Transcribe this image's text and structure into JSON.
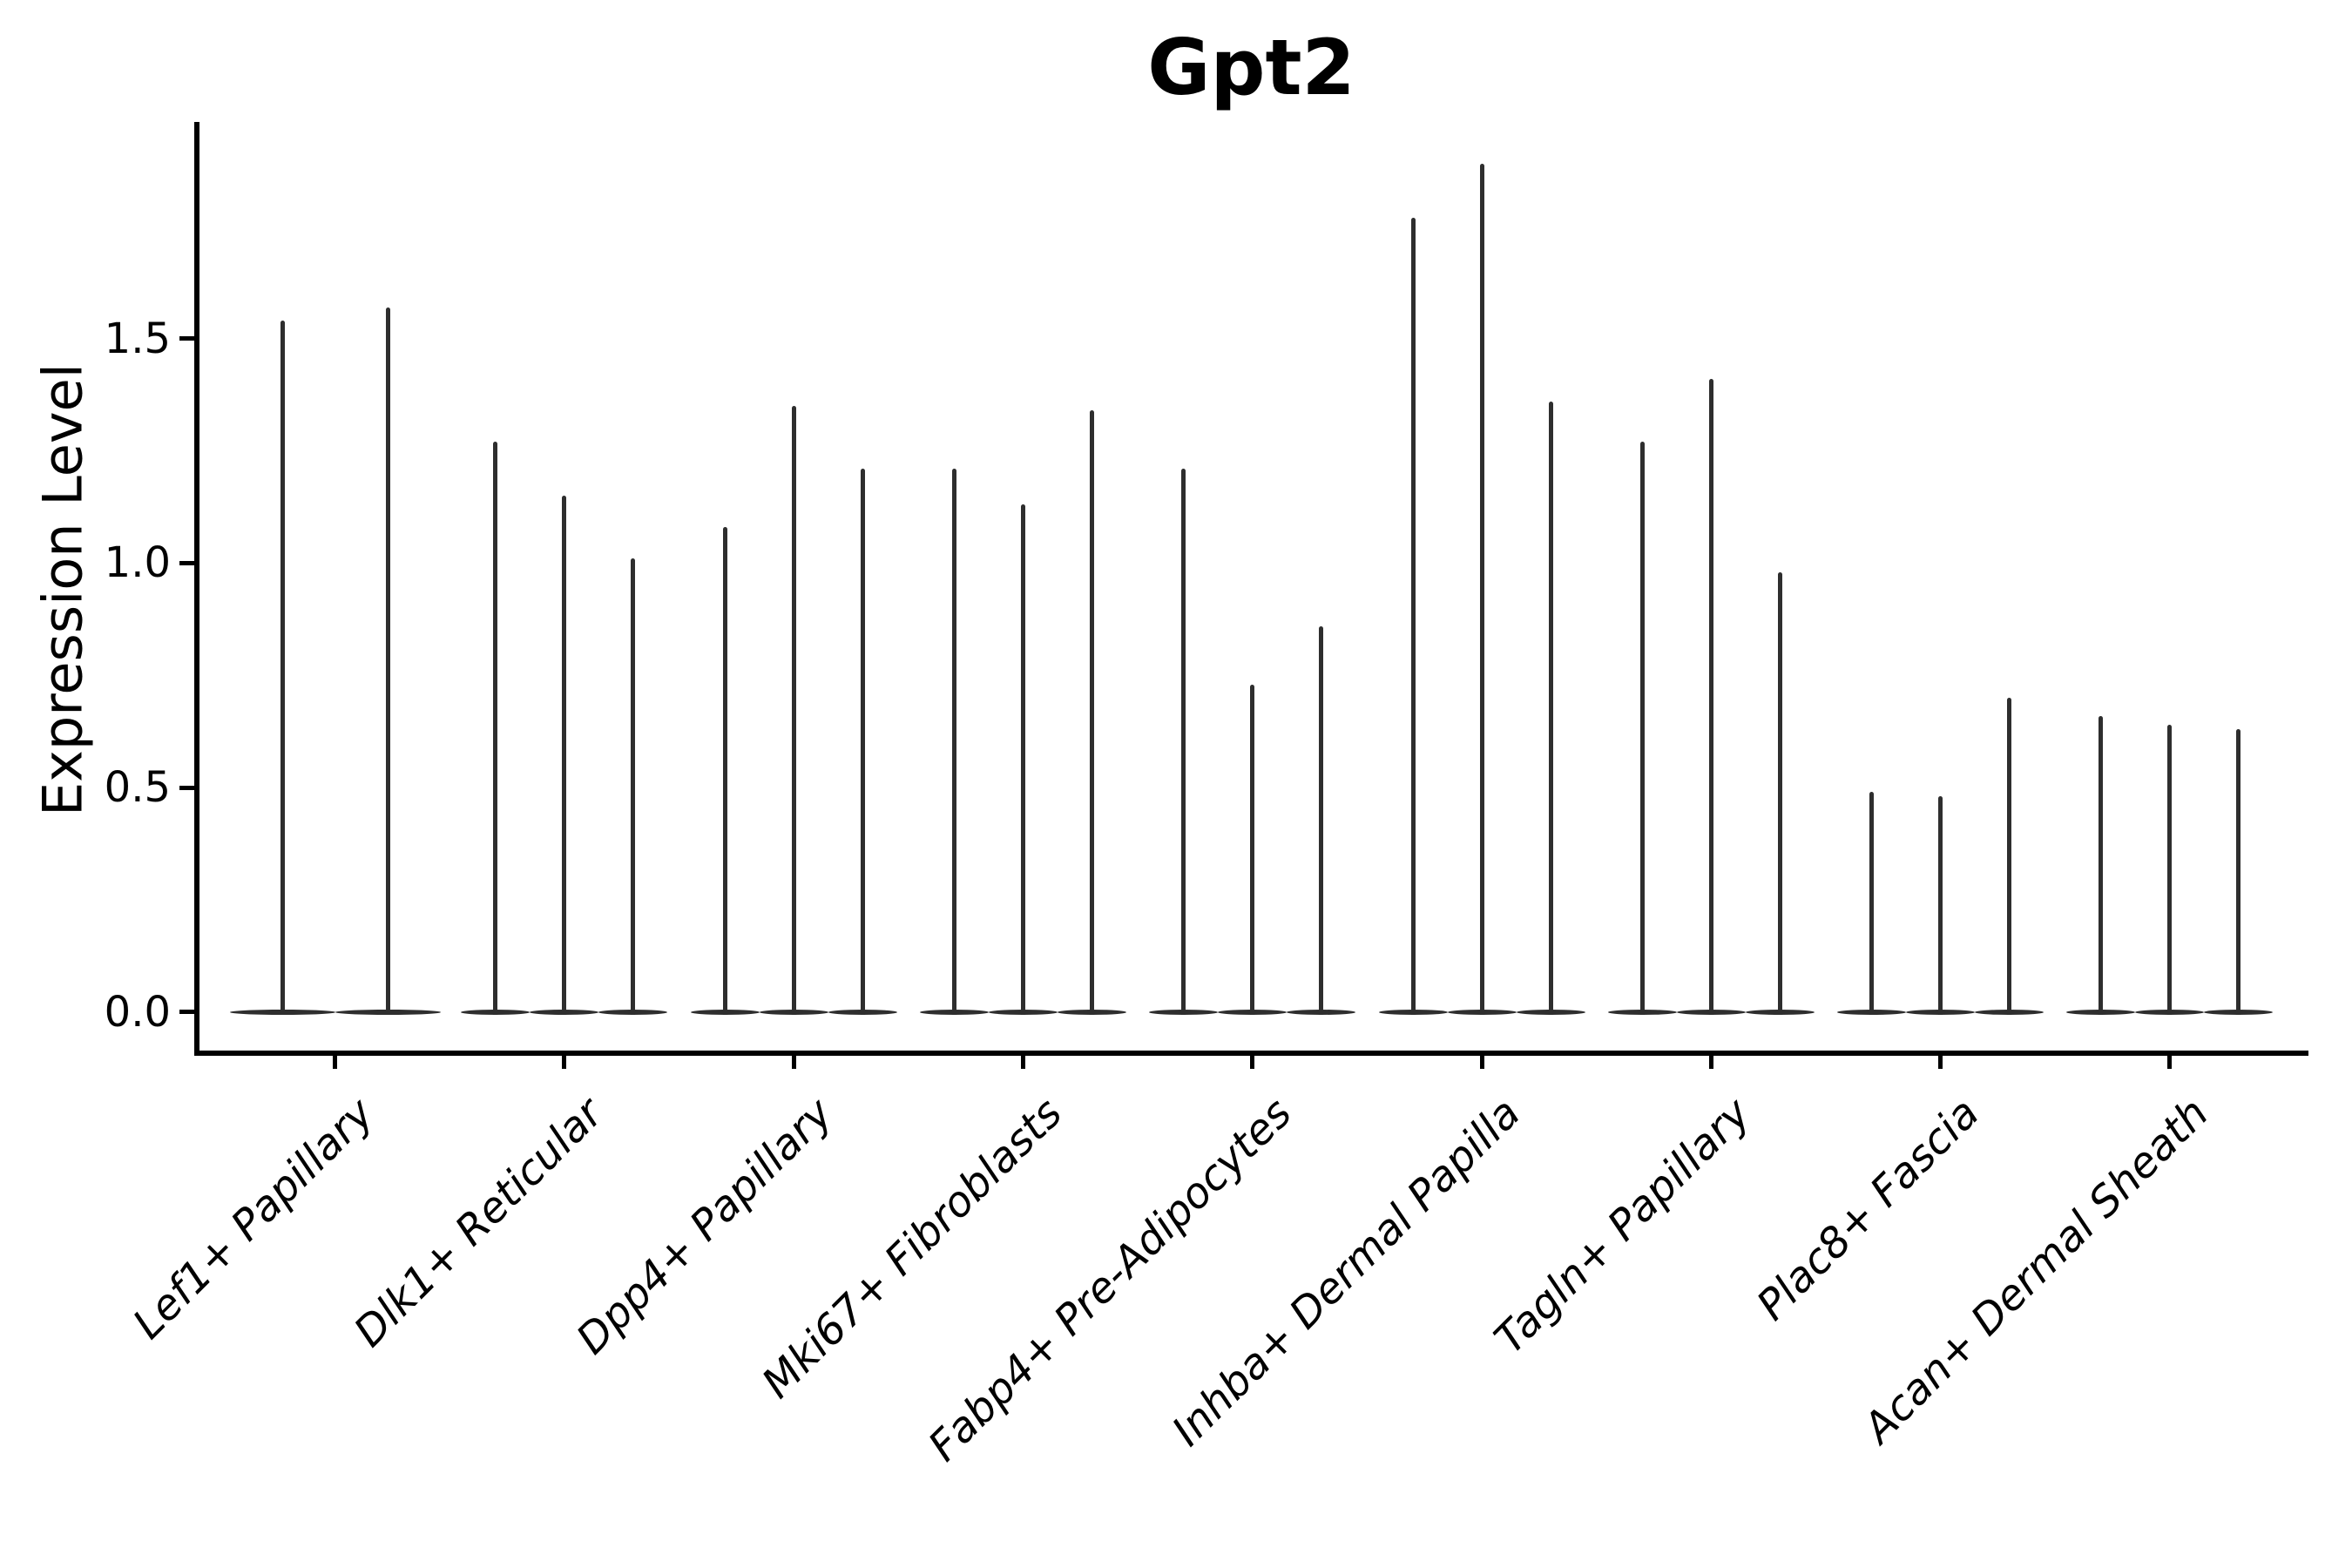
{
  "title": "Gpt2",
  "ylabel": "Expression Level",
  "chart_data": {
    "type": "violin",
    "title": "Gpt2",
    "xlabel": "",
    "ylabel": "Expression Level",
    "ylim": [
      0,
      1.98
    ],
    "yticks": [
      "0.0",
      "0.5",
      "1.0",
      "1.5"
    ],
    "grid": false,
    "legend": "none",
    "description": "Needle-thin stacked violin plot of Gpt2 expression; each category holds one narrow violin per sample whose bulk sits at 0 with a thin tail rising to the listed maximum expression value.",
    "categories": [
      "Lef1+ Papillary",
      "Dlk1+ Reticular",
      "Dpp4+ Papillary",
      "Mki67+ Fibroblasts",
      "Fabp4+ Pre-Adipocytes",
      "Inhba+ Dermal Papilla",
      "Tagln+ Papillary",
      "Plac8+ Fascia",
      "Acan+ Dermal Sheath"
    ],
    "groups": [
      {
        "label": "Lef1+ Papillary",
        "violin_max_values": [
          1.54,
          1.57
        ]
      },
      {
        "label": "Dlk1+ Reticular",
        "violin_max_values": [
          1.27,
          1.15,
          1.01
        ]
      },
      {
        "label": "Dpp4+ Papillary",
        "violin_max_values": [
          1.08,
          1.35,
          1.21
        ]
      },
      {
        "label": "Mki67+ Fibroblasts",
        "violin_max_values": [
          1.21,
          1.13,
          1.34
        ]
      },
      {
        "label": "Fabp4+ Pre-Adipocytes",
        "violin_max_values": [
          1.21,
          0.73,
          0.86
        ]
      },
      {
        "label": "Inhba+ Dermal Papilla",
        "violin_max_values": [
          1.77,
          1.89,
          1.36
        ]
      },
      {
        "label": "Tagln+ Papillary",
        "violin_max_values": [
          1.27,
          1.41,
          0.98
        ]
      },
      {
        "label": "Plac8+ Fascia",
        "violin_max_values": [
          0.49,
          0.48,
          0.7
        ]
      },
      {
        "label": "Acan+ Dermal Sheath",
        "violin_max_values": [
          0.66,
          0.64,
          0.63
        ]
      }
    ],
    "colors": {
      "violin": "#2e2e2e",
      "axis": "#000000",
      "text": "#000000"
    }
  }
}
